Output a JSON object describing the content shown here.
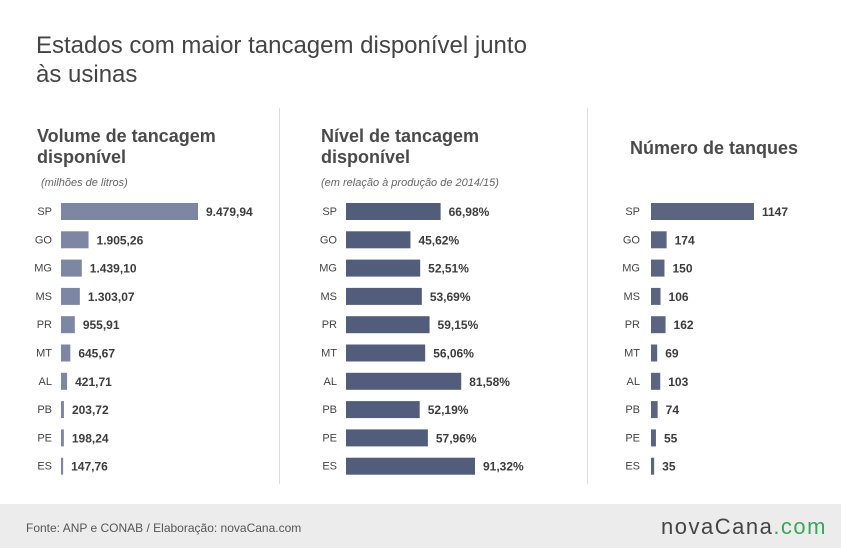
{
  "title": "Estados com maior tancagem disponível junto às usinas",
  "footer": {
    "source": "Fonte: ANP e CONAB /  Elaboração: novaCana.com",
    "logo_main": "novaCana",
    "logo_suffix": ".com"
  },
  "colors": {
    "panel1_bar": "#7d86a3",
    "panel2_bar": "#525d7b",
    "panel3_bar": "#5b6481",
    "logo_accent": "#3aa757"
  },
  "chart_data": [
    {
      "type": "bar",
      "orientation": "horizontal",
      "title": "Volume de tancagem disponível",
      "subtitle": "(milhões de litros)",
      "categories": [
        "SP",
        "GO",
        "MG",
        "MS",
        "PR",
        "MT",
        "AL",
        "PB",
        "PE",
        "ES"
      ],
      "values": [
        9479.94,
        1905.26,
        1439.1,
        1303.07,
        955.91,
        645.67,
        421.71,
        203.72,
        198.24,
        147.76
      ],
      "labels": [
        "9.479,94",
        "1.905,26",
        "1.439,10",
        "1.303,07",
        "955,91",
        "645,67",
        "421,71",
        "203,72",
        "198,24",
        "147,76"
      ],
      "xlim": [
        0,
        9479.94
      ]
    },
    {
      "type": "bar",
      "orientation": "horizontal",
      "title": "Nível de tancagem disponível",
      "subtitle": "(em relação à produção de 2014/15)",
      "categories": [
        "SP",
        "GO",
        "MG",
        "MS",
        "PR",
        "MT",
        "AL",
        "PB",
        "PE",
        "ES"
      ],
      "values": [
        66.98,
        45.62,
        52.51,
        53.69,
        59.15,
        56.06,
        81.58,
        52.19,
        57.96,
        91.32
      ],
      "labels": [
        "66,98%",
        "45,62%",
        "52,51%",
        "53,69%",
        "59,15%",
        "56,06%",
        "81,58%",
        "52,19%",
        "57,96%",
        "91,32%"
      ],
      "xlim": [
        0,
        91.32
      ]
    },
    {
      "type": "bar",
      "orientation": "horizontal",
      "title": "Número de tanques",
      "subtitle": "",
      "categories": [
        "SP",
        "GO",
        "MG",
        "MS",
        "PR",
        "MT",
        "AL",
        "PB",
        "PE",
        "ES"
      ],
      "values": [
        1147,
        174,
        150,
        106,
        162,
        69,
        103,
        74,
        55,
        35
      ],
      "labels": [
        "1147",
        "174",
        "150",
        "106",
        "162",
        "69",
        "103",
        "74",
        "55",
        "35"
      ],
      "xlim": [
        0,
        1147
      ]
    }
  ]
}
